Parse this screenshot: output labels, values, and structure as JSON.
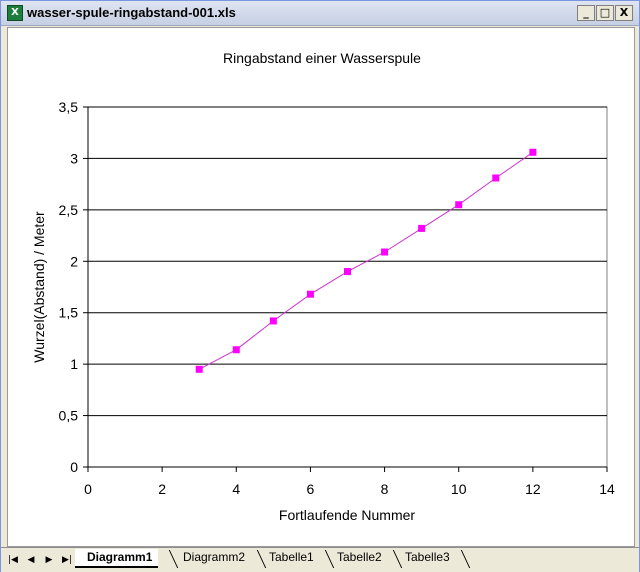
{
  "window": {
    "title": "wasser-spule-ringabstand-001.xls",
    "icon": "excel-icon",
    "controls": {
      "minimize": "_",
      "restore": "□",
      "close": "X"
    }
  },
  "sheet_nav": {
    "first": "|◀",
    "prev": "◀",
    "next": "▶",
    "last": "▶|"
  },
  "sheet_tabs": [
    {
      "label": "Diagramm1",
      "active": true
    },
    {
      "label": "Diagramm2",
      "active": false
    },
    {
      "label": "Tabelle1",
      "active": false
    },
    {
      "label": "Tabelle2",
      "active": false
    },
    {
      "label": "Tabelle3",
      "active": false
    }
  ],
  "chart_data": {
    "type": "line",
    "title": "Ringabstand einer Wasserspule",
    "xlabel": "Fortlaufende Nummer",
    "ylabel": "Wurzel(Abstand) / Meter",
    "xlim": [
      0,
      14
    ],
    "ylim": [
      0,
      3.5
    ],
    "x_ticks": [
      "0",
      "2",
      "4",
      "6",
      "8",
      "10",
      "12",
      "14"
    ],
    "y_ticks": [
      "0",
      "0,5",
      "1",
      "1,5",
      "2",
      "2,5",
      "3",
      "3,5"
    ],
    "grid": "horizontal",
    "colors": {
      "series": "#cc33cc",
      "marker": "#ff00ff",
      "grid": "#000000"
    },
    "series": [
      {
        "x": [
          3,
          4,
          5,
          6,
          7,
          8,
          9,
          10,
          11,
          12
        ],
        "values": [
          0.95,
          1.14,
          1.42,
          1.68,
          1.9,
          2.09,
          2.32,
          2.55,
          2.81,
          3.06
        ]
      }
    ]
  }
}
